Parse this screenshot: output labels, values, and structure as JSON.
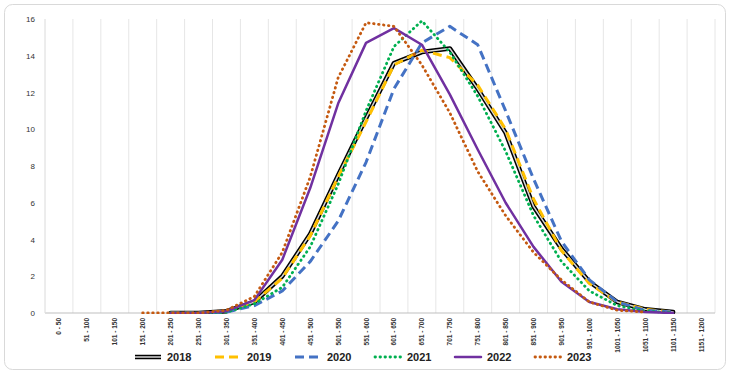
{
  "chart_data": {
    "type": "line",
    "categories": [
      "0 - 50",
      "51 - 100",
      "101 - 150",
      "151 - 200",
      "201 - 250",
      "251 - 300",
      "301 - 350",
      "351 - 400",
      "401 - 450",
      "451 - 500",
      "501 - 550",
      "551 - 600",
      "601 - 650",
      "651 - 700",
      "701 - 750",
      "751 - 800",
      "801 - 850",
      "851 - 900",
      "901 - 950",
      "951 - 1000",
      "1001 - 1050",
      "1051 - 1100",
      "1101 - 1150",
      "1151 - 1200"
    ],
    "series": [
      {
        "name": "2018",
        "color": "#000000",
        "line_style": "double",
        "values": [
          null,
          null,
          null,
          null,
          0,
          0,
          0.1,
          0.6,
          2.0,
          4.3,
          7.5,
          10.6,
          13.6,
          14.2,
          14.4,
          12.2,
          9.8,
          5.8,
          3.5,
          1.7,
          0.6,
          0.2,
          0.05,
          null
        ]
      },
      {
        "name": "2019",
        "color": "#ffc000",
        "line_style": "dashed",
        "values": [
          null,
          null,
          null,
          null,
          0,
          0,
          0.1,
          0.6,
          1.9,
          4.2,
          7.4,
          10.4,
          13.5,
          14.3,
          13.9,
          12.4,
          10.0,
          6.2,
          3.4,
          1.6,
          0.6,
          0.2,
          0.05,
          null
        ]
      },
      {
        "name": "2020",
        "color": "#4472c4",
        "line_style": "dashed",
        "values": [
          null,
          null,
          null,
          null,
          0,
          0,
          0.05,
          0.4,
          1.2,
          2.8,
          5.0,
          8.2,
          12.2,
          14.7,
          15.6,
          14.6,
          11.0,
          7.3,
          3.9,
          1.8,
          0.6,
          0.15,
          0.05,
          null
        ]
      },
      {
        "name": "2021",
        "color": "#00b050",
        "line_style": "dotted",
        "values": [
          null,
          null,
          null,
          null,
          0,
          0,
          0.05,
          0.5,
          1.4,
          3.6,
          7.0,
          11.0,
          14.5,
          15.9,
          14.2,
          11.8,
          8.8,
          5.3,
          2.8,
          1.2,
          0.4,
          0.1,
          0.02,
          null
        ]
      },
      {
        "name": "2022",
        "color": "#7030a0",
        "line_style": "solid",
        "values": [
          null,
          null,
          null,
          null,
          0,
          0,
          0.1,
          0.7,
          2.9,
          6.8,
          11.4,
          14.7,
          15.5,
          14.6,
          11.9,
          8.9,
          6.0,
          3.6,
          1.7,
          0.6,
          0.2,
          0.05,
          0,
          null
        ]
      },
      {
        "name": "2023",
        "color": "#c55a11",
        "line_style": "dotted",
        "values": [
          null,
          null,
          null,
          0,
          0,
          0,
          0.15,
          0.9,
          3.3,
          7.4,
          12.8,
          15.8,
          15.6,
          13.5,
          10.9,
          7.7,
          5.3,
          3.3,
          1.8,
          0.6,
          0.15,
          0.05,
          null,
          null
        ]
      }
    ],
    "ylim": [
      0,
      16
    ],
    "yticks": [
      0,
      2,
      4,
      6,
      8,
      10,
      12,
      14,
      16
    ],
    "grid": true,
    "legend": "bottom"
  }
}
